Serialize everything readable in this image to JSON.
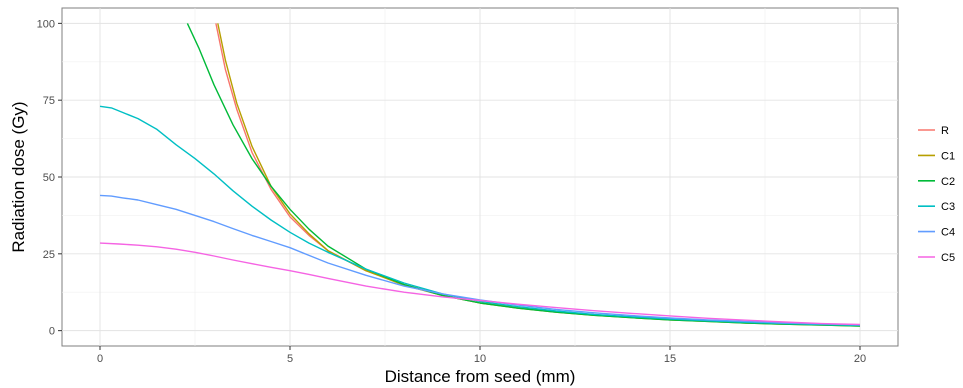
{
  "chart_data": {
    "type": "line",
    "title": "",
    "xlabel": "Distance from seed (mm)",
    "ylabel": "Radiation dose (Gy)",
    "xlim": [
      -1,
      21
    ],
    "ylim": [
      -5,
      105
    ],
    "xticks": [
      0,
      5,
      10,
      15,
      20
    ],
    "xtick_labels": [
      "0",
      "5",
      "10",
      "15",
      "20"
    ],
    "yticks": [
      0,
      25,
      50,
      75,
      100
    ],
    "ytick_labels": [
      "0",
      "25",
      "50",
      "75",
      "100"
    ],
    "grid": true,
    "legend_position": "right",
    "series": [
      {
        "name": "R",
        "color": "#F8766D",
        "x": [
          3.05,
          3.3,
          3.6,
          4.0,
          4.5,
          5.0,
          5.5,
          6.0,
          7.0,
          8.0,
          9.0,
          10.0,
          11.0,
          12.0,
          13.0,
          14.0,
          15.0,
          16.0,
          17.0,
          18.0,
          19.0,
          20.0
        ],
        "y": [
          100,
          85,
          72,
          58,
          46,
          37,
          31,
          26,
          19.5,
          15,
          11.5,
          9,
          7.5,
          6.2,
          5.2,
          4.4,
          3.7,
          3.1,
          2.6,
          2.2,
          1.9,
          1.6
        ]
      },
      {
        "name": "C1",
        "color": "#B79F00",
        "x": [
          3.1,
          3.3,
          3.6,
          4.0,
          4.5,
          5.0,
          5.5,
          6.0,
          7.0,
          8.0,
          9.0,
          10.0,
          11.0,
          12.0,
          13.0,
          14.0,
          15.0,
          16.0,
          17.0,
          18.0,
          19.0,
          20.0
        ],
        "y": [
          100,
          88,
          74,
          60,
          47,
          38,
          31.5,
          26,
          19.5,
          14.8,
          11.5,
          9,
          7.3,
          6,
          5,
          4.2,
          3.5,
          3,
          2.5,
          2.1,
          1.8,
          1.5
        ]
      },
      {
        "name": "C2",
        "color": "#00BA38",
        "x": [
          2.3,
          2.6,
          3.0,
          3.5,
          4.0,
          4.5,
          5.0,
          5.5,
          6.0,
          7.0,
          8.0,
          9.0,
          10.0,
          11.0,
          12.0,
          13.0,
          14.0,
          15.0,
          16.0,
          17.0,
          18.0,
          19.0,
          20.0
        ],
        "y": [
          100,
          92,
          80,
          67,
          56,
          47,
          39.5,
          33,
          27.5,
          20,
          15,
          11.5,
          9,
          7.3,
          6,
          5,
          4.2,
          3.5,
          3,
          2.5,
          2.1,
          1.8,
          1.5
        ]
      },
      {
        "name": "C3",
        "color": "#00BFC4",
        "x": [
          0,
          0.3,
          0.6,
          1.0,
          1.5,
          2.0,
          2.5,
          3.0,
          3.5,
          4.0,
          4.5,
          5.0,
          5.5,
          6.0,
          7.0,
          8.0,
          9.0,
          10.0,
          11.0,
          12.0,
          13.0,
          14.0,
          15.0,
          16.0,
          17.0,
          18.0,
          19.0,
          20.0
        ],
        "y": [
          73,
          72.5,
          71,
          69,
          65.5,
          60.5,
          56,
          51,
          45.5,
          40.5,
          36,
          32,
          28.5,
          25.5,
          20,
          15.5,
          12,
          9.5,
          7.8,
          6.4,
          5.3,
          4.5,
          3.8,
          3.2,
          2.7,
          2.3,
          2,
          1.7
        ]
      },
      {
        "name": "C4",
        "color": "#619CFF",
        "x": [
          0,
          0.3,
          0.6,
          1.0,
          1.5,
          2.0,
          2.5,
          3.0,
          3.5,
          4.0,
          4.5,
          5.0,
          5.5,
          6.0,
          7.0,
          8.0,
          9.0,
          10.0,
          11.0,
          12.0,
          13.0,
          14.0,
          15.0,
          16.0,
          17.0,
          18.0,
          19.0,
          20.0
        ],
        "y": [
          44,
          43.8,
          43.2,
          42.5,
          41,
          39.5,
          37.5,
          35.5,
          33.2,
          31,
          29,
          27,
          24.5,
          22,
          18,
          14.5,
          12,
          10,
          8.3,
          6.9,
          5.8,
          4.9,
          4.1,
          3.5,
          3,
          2.5,
          2.2,
          1.9
        ]
      },
      {
        "name": "C5",
        "color": "#F564E3",
        "x": [
          0,
          0.5,
          1.0,
          1.5,
          2.0,
          2.5,
          3.0,
          3.5,
          4.0,
          4.5,
          5.0,
          5.5,
          6.0,
          7.0,
          8.0,
          9.0,
          10.0,
          11.0,
          12.0,
          13.0,
          14.0,
          15.0,
          16.0,
          17.0,
          18.0,
          19.0,
          20.0
        ],
        "y": [
          28.5,
          28.2,
          27.8,
          27.3,
          26.5,
          25.5,
          24.3,
          23,
          21.8,
          20.6,
          19.5,
          18.3,
          17,
          14.5,
          12.5,
          11,
          9.8,
          8.6,
          7.5,
          6.5,
          5.6,
          4.8,
          4,
          3.4,
          2.8,
          2.3,
          2
        ]
      }
    ]
  }
}
